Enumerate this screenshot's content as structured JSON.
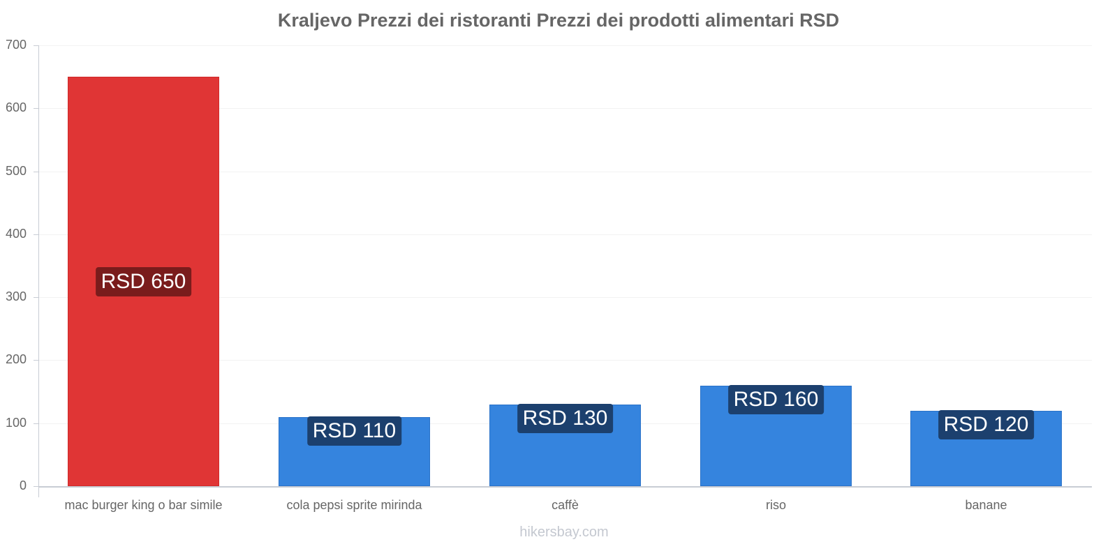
{
  "title": "Kraljevo Prezzi dei ristoranti Prezzi dei prodotti alimentari RSD",
  "watermark": "hikersbay.com",
  "colors": {
    "highlight": "#e03535",
    "primary": "#3584de",
    "highlight_label_bg": "#7a1c1c",
    "primary_label_bg": "#1c406e"
  },
  "yaxis": {
    "ticks": [
      "0",
      "100",
      "200",
      "300",
      "400",
      "500",
      "600",
      "700"
    ]
  },
  "bars": [
    {
      "category": "mac burger king o bar simile",
      "value": 650,
      "label": "RSD 650",
      "color": "red"
    },
    {
      "category": "cola pepsi sprite mirinda",
      "value": 110,
      "label": "RSD 110",
      "color": "blue"
    },
    {
      "category": "caffè",
      "value": 130,
      "label": "RSD 130",
      "color": "blue"
    },
    {
      "category": "riso",
      "value": 160,
      "label": "RSD 160",
      "color": "blue"
    },
    {
      "category": "banane",
      "value": 120,
      "label": "RSD 120",
      "color": "blue"
    }
  ],
  "chart_data": {
    "type": "bar",
    "title": "Kraljevo Prezzi dei ristoranti Prezzi dei prodotti alimentari RSD",
    "categories": [
      "mac burger king o bar simile",
      "cola pepsi sprite mirinda",
      "caffè",
      "riso",
      "banane"
    ],
    "values": [
      650,
      110,
      130,
      160,
      120
    ],
    "data_labels": [
      "RSD 650",
      "RSD 110",
      "RSD 130",
      "RSD 160",
      "RSD 120"
    ],
    "xlabel": "",
    "ylabel": "",
    "ylim": [
      0,
      700
    ],
    "yticks": [
      0,
      100,
      200,
      300,
      400,
      500,
      600,
      700
    ],
    "grid": true,
    "legend": null,
    "bar_colors": [
      "#e03535",
      "#3584de",
      "#3584de",
      "#3584de",
      "#3584de"
    ]
  }
}
